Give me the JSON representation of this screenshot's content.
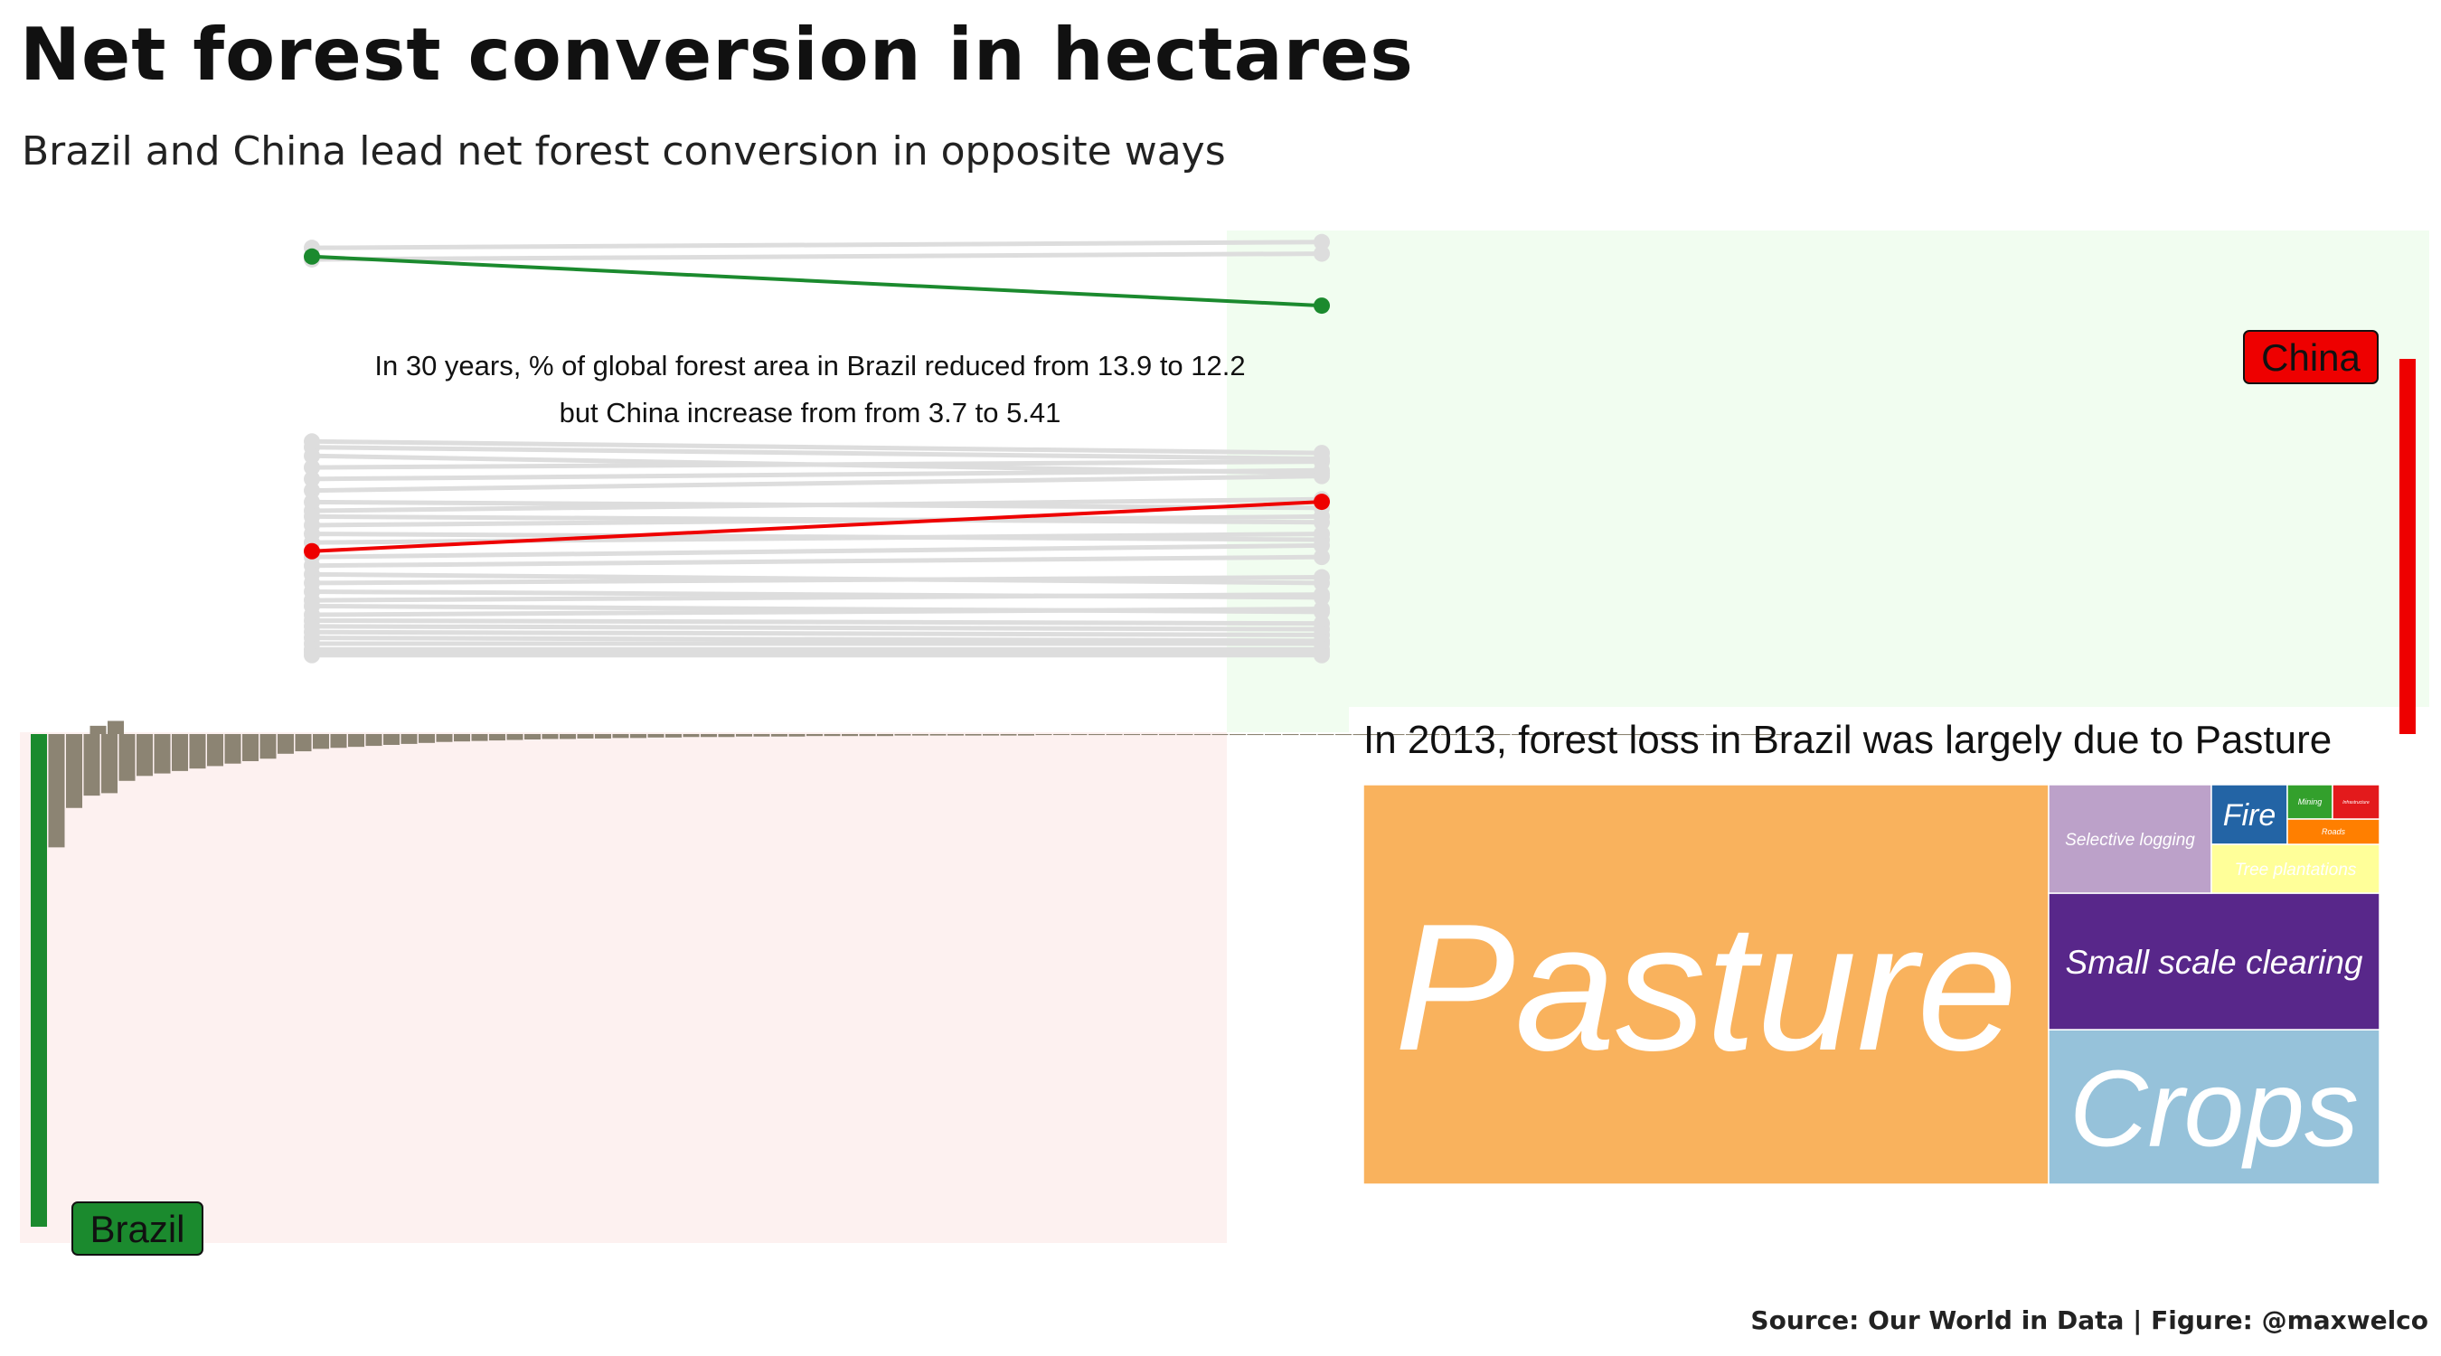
{
  "title": "Net forest conversion in hectares",
  "subtitle": "Brazil and China lead net forest conversion in opposite ways",
  "source": "Source: Our World in Data | Figure: @maxwelco",
  "chart_data": [
    {
      "type": "line",
      "subtype": "slope",
      "annotation_line1": "In 30 years, % of global forest area in Brazil reduced from 13.9 to 12.2",
      "annotation_line2": "but China increase from from 3.7 to 5.41",
      "highlight": [
        {
          "name": "Brazil",
          "color": "#1b8a2e",
          "start": 13.9,
          "end": 12.2
        },
        {
          "name": "China",
          "color": "#ee0000",
          "start": 3.7,
          "end": 5.41
        }
      ],
      "other_color": "#dddddd",
      "others": [
        [
          14.2,
          14.4
        ],
        [
          13.8,
          14.0
        ],
        [
          7.5,
          7.1
        ],
        [
          7.3,
          6.9
        ],
        [
          7.0,
          6.4
        ],
        [
          6.6,
          6.8
        ],
        [
          6.2,
          6.5
        ],
        [
          5.8,
          6.3
        ],
        [
          5.4,
          5.2
        ],
        [
          5.1,
          5.5
        ],
        [
          4.9,
          4.7
        ],
        [
          4.6,
          4.9
        ],
        [
          4.3,
          4.1
        ],
        [
          4.0,
          4.3
        ],
        [
          3.5,
          3.9
        ],
        [
          3.2,
          3.5
        ],
        [
          2.9,
          2.6
        ],
        [
          2.6,
          2.8
        ],
        [
          2.3,
          2.1
        ],
        [
          2.0,
          2.2
        ],
        [
          1.8,
          1.6
        ],
        [
          1.5,
          1.7
        ],
        [
          1.3,
          1.2
        ],
        [
          1.1,
          1.0
        ],
        [
          0.9,
          0.8
        ],
        [
          0.7,
          0.6
        ],
        [
          0.5,
          0.5
        ],
        [
          0.3,
          0.3
        ],
        [
          0.2,
          0.2
        ],
        [
          0.1,
          0.1
        ]
      ]
    },
    {
      "type": "bar",
      "label": "China",
      "highlight_color": "#ee0000",
      "other_color": "#8c8473",
      "background": "#f1fdf0",
      "values": [
        1.0,
        0.0,
        0.0,
        0.0,
        0.0,
        0.0,
        0.0,
        0.0,
        0.0,
        0.0,
        0.0,
        0.0,
        0.0,
        0.0,
        0.0,
        0.0,
        0.0,
        0.0,
        0.0,
        0.0,
        0.0,
        0.0,
        0.0,
        0.0,
        0.0,
        0.0,
        0.0,
        0.0,
        0.0,
        0.0,
        0.0,
        0.0,
        0.0,
        0.0,
        0.0,
        0.0,
        0.0,
        0.0,
        0.0,
        0.0,
        0.0,
        0.0,
        0.0,
        0.0,
        0.0,
        0.0,
        0.0,
        0.0,
        0.0,
        0.0,
        0.0,
        0.0,
        0.0,
        0.0,
        0.0,
        0.0,
        0.0,
        0.0,
        0.0,
        0.0,
        0.0,
        0.0,
        0.0,
        0.0,
        0.0,
        0.0,
        0.0,
        0.0,
        0.0,
        0.0,
        0.0,
        0.0,
        0.0,
        0.0,
        0.0,
        0.0,
        0.0,
        0.0,
        0.0,
        0.0,
        0.0,
        0.0,
        0.0,
        0.0,
        0.0,
        0.0,
        0.0,
        0.0,
        0.0,
        0.0,
        0.0,
        0.0,
        0.0,
        0.0,
        0.0,
        0.0,
        0.0,
        0.0,
        0.0,
        0.0,
        0.0,
        0.0,
        0.0,
        0.0,
        0.0,
        0.0,
        0.0,
        0.0,
        0.0,
        0.0,
        0.0,
        0.0,
        0.0,
        0.0,
        0.0,
        0.0,
        0.0,
        0.0,
        0.0,
        0.0,
        0.0,
        0.0,
        0.0,
        0.0,
        0.0,
        0.0,
        0.0,
        0.0,
        0.0,
        0.0,
        0.035,
        0.022
      ],
      "direction": "reverse"
    },
    {
      "type": "bar",
      "label": "Brazil",
      "highlight_color": "#1b8a2e",
      "other_color": "#8c8473",
      "background": "#fdf1f0",
      "values": [
        -1.0,
        -0.23,
        -0.15,
        -0.125,
        -0.12,
        -0.095,
        -0.085,
        -0.08,
        -0.075,
        -0.07,
        -0.065,
        -0.06,
        -0.055,
        -0.05,
        -0.04,
        -0.035,
        -0.03,
        -0.028,
        -0.026,
        -0.024,
        -0.022,
        -0.02,
        -0.018,
        -0.016,
        -0.015,
        -0.014,
        -0.013,
        -0.012,
        -0.011,
        -0.01,
        -0.01,
        -0.009,
        -0.009,
        -0.008,
        -0.008,
        -0.007,
        -0.007,
        -0.006,
        -0.006,
        -0.006,
        -0.005,
        -0.005,
        -0.005,
        -0.005,
        -0.004,
        -0.004,
        -0.004,
        -0.004,
        -0.004,
        -0.003,
        -0.003,
        -0.003,
        -0.003,
        -0.003,
        -0.003,
        -0.003,
        -0.003,
        -0.002,
        -0.002,
        -0.002,
        -0.002,
        -0.002,
        -0.002,
        -0.002,
        -0.002,
        -0.002,
        -0.002,
        -0.002,
        -0.002,
        -0.002,
        -0.002,
        -0.002,
        -0.002,
        -0.002,
        -0.002,
        -0.002,
        -0.002,
        -0.002,
        -0.002,
        -0.002,
        -0.002,
        -0.002,
        -0.002,
        -0.002,
        -0.002,
        -0.002,
        -0.002,
        -0.002,
        -0.002,
        -0.002,
        -0.002,
        -0.002,
        -0.002,
        -0.002,
        -0.002,
        -0.002,
        -0.002,
        -0.002,
        -0.002,
        -0.002
      ],
      "direction": "forward"
    },
    {
      "type": "treemap",
      "title": "In 2013, forest loss in Brazil was largely due to Pasture",
      "items": [
        {
          "name": "Pasture",
          "color": "#f9b25d",
          "share": 0.675
        },
        {
          "name": "Crops",
          "color": "#96c2da",
          "share": 0.098
        },
        {
          "name": "Small scale clearing",
          "color": "#58278a",
          "share": 0.114
        },
        {
          "name": "Selective logging",
          "color": "#bca1c9",
          "share": 0.053
        },
        {
          "name": "Fire",
          "color": "#2364a5",
          "share": 0.024
        },
        {
          "name": "Tree plantations",
          "color": "#ffff99",
          "share": 0.019
        },
        {
          "name": "Mining",
          "color": "#33a02c",
          "share": 0.007
        },
        {
          "name": "Roads",
          "color": "#ff7f00",
          "share": 0.006
        },
        {
          "name": "Infrastructure",
          "color": "#e31a1c",
          "share": 0.005
        }
      ]
    }
  ]
}
